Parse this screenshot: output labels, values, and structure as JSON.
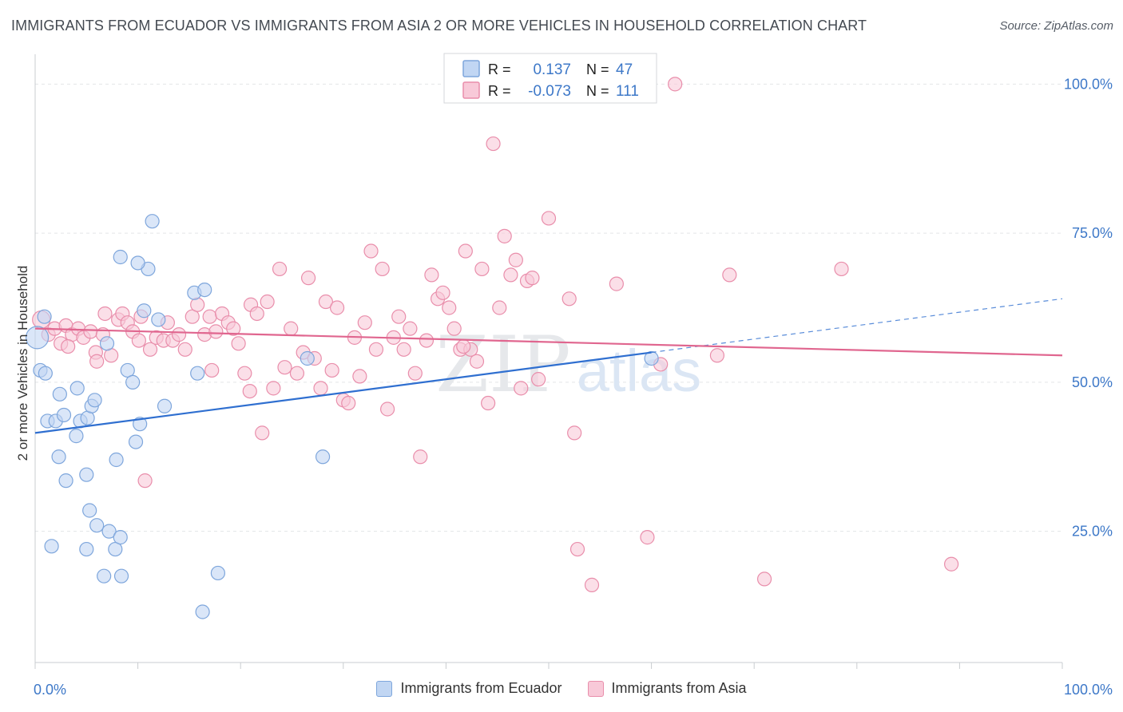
{
  "title": "IMMIGRANTS FROM ECUADOR VS IMMIGRANTS FROM ASIA 2 OR MORE VEHICLES IN HOUSEHOLD CORRELATION CHART",
  "source": "Source: ZipAtlas.com",
  "watermark": {
    "zip": "ZIP",
    "atlas": "atlas"
  },
  "colors": {
    "blue_fill": "#c1d6f3",
    "blue_stroke": "#7ea6dc",
    "blue_line": "#2f6fd0",
    "pink_fill": "#f8c9d8",
    "pink_stroke": "#e98eab",
    "pink_line": "#e0668f",
    "tick_label": "#3d78c8"
  },
  "legend_box": {
    "rows": [
      {
        "r_label": "R =",
        "r_value": "0.137",
        "n_label": "N =",
        "n_value": "47"
      },
      {
        "r_label": "R =",
        "r_value": "-0.073",
        "n_label": "N =",
        "n_value": "111"
      }
    ]
  },
  "chart_data": {
    "type": "scatter",
    "ylabel": "2 or more Vehicles in Household",
    "xlim": [
      0,
      100
    ],
    "ylim": [
      3,
      105
    ],
    "x_tick_labels": [
      {
        "x": 0,
        "label": "0.0%"
      },
      {
        "x": 100,
        "label": "100.0%"
      }
    ],
    "y_tick_labels": [
      {
        "y": 25,
        "label": "25.0%"
      },
      {
        "y": 50,
        "label": "50.0%"
      },
      {
        "y": 75,
        "label": "75.0%"
      },
      {
        "y": 100,
        "label": "100.0%"
      }
    ],
    "legend_position": "bottom-center",
    "grid": true,
    "series": [
      {
        "name": "Immigrants from Ecuador",
        "color": "#7ea6dc",
        "trend": {
          "x0": 0,
          "y0": 41.5,
          "x1": 60,
          "y1": 55,
          "dash_to_x": 100,
          "dash_to_y": 64
        },
        "points": [
          [
            0.2,
            57.5
          ],
          [
            0.5,
            52
          ],
          [
            1,
            51.5
          ],
          [
            1.2,
            43.5
          ],
          [
            2,
            43.5
          ],
          [
            2.3,
            37.5
          ],
          [
            2.4,
            48
          ],
          [
            2.8,
            44.5
          ],
          [
            3,
            33.5
          ],
          [
            4,
            41
          ],
          [
            4.4,
            43.5
          ],
          [
            4.1,
            49
          ],
          [
            5,
            22
          ],
          [
            5.1,
            44
          ],
          [
            5,
            34.5
          ],
          [
            5.3,
            28.5
          ],
          [
            5.5,
            46
          ],
          [
            5.8,
            47
          ],
          [
            6,
            26
          ],
          [
            6.7,
            17.5
          ],
          [
            7,
            56.5
          ],
          [
            7.2,
            25
          ],
          [
            7.8,
            22
          ],
          [
            7.9,
            37
          ],
          [
            8.3,
            24
          ],
          [
            8.4,
            17.5
          ],
          [
            9,
            52
          ],
          [
            9.5,
            50
          ],
          [
            9.8,
            40
          ],
          [
            10.2,
            43
          ],
          [
            11,
            69
          ],
          [
            11.4,
            77
          ],
          [
            10.6,
            62
          ],
          [
            12.6,
            46
          ],
          [
            10,
            70
          ],
          [
            12,
            60.5
          ],
          [
            15.5,
            65
          ],
          [
            15.8,
            51.5
          ],
          [
            16.3,
            11.5
          ],
          [
            16.5,
            65.5
          ],
          [
            17.8,
            18
          ],
          [
            8.3,
            71
          ],
          [
            1.6,
            22.5
          ],
          [
            26.5,
            54
          ],
          [
            28,
            37.5
          ],
          [
            60,
            54
          ],
          [
            0.9,
            61
          ]
        ]
      },
      {
        "name": "Immigrants from Asia",
        "color": "#e98eab",
        "trend": {
          "x0": 0,
          "y0": 59,
          "x1": 100,
          "y1": 54.5
        },
        "points": [
          [
            0.6,
            60.5
          ],
          [
            1.3,
            58
          ],
          [
            1.9,
            59
          ],
          [
            2.5,
            56.5
          ],
          [
            3,
            59.5
          ],
          [
            3.6,
            58
          ],
          [
            4.2,
            59
          ],
          [
            4.7,
            57.5
          ],
          [
            5.4,
            58.5
          ],
          [
            5.9,
            55
          ],
          [
            6,
            53.5
          ],
          [
            6.6,
            58
          ],
          [
            6.8,
            61.5
          ],
          [
            7.4,
            54.5
          ],
          [
            8.1,
            60.5
          ],
          [
            8.5,
            61.5
          ],
          [
            9,
            60
          ],
          [
            9.5,
            58.5
          ],
          [
            10.3,
            61
          ],
          [
            10.7,
            33.5
          ],
          [
            11.2,
            55.5
          ],
          [
            11.8,
            57.5
          ],
          [
            12.5,
            57
          ],
          [
            12.9,
            60
          ],
          [
            13.4,
            57
          ],
          [
            14,
            58
          ],
          [
            14.6,
            55.5
          ],
          [
            15.3,
            61
          ],
          [
            15.8,
            63
          ],
          [
            16.5,
            58
          ],
          [
            17,
            61
          ],
          [
            17.6,
            58.5
          ],
          [
            18.2,
            61.5
          ],
          [
            18.8,
            60
          ],
          [
            19.3,
            59
          ],
          [
            19.8,
            56.5
          ],
          [
            20.4,
            51.5
          ],
          [
            21,
            63
          ],
          [
            21.6,
            61.5
          ],
          [
            22.1,
            41.5
          ],
          [
            22.6,
            63.5
          ],
          [
            23.2,
            49
          ],
          [
            23.8,
            69
          ],
          [
            24.3,
            52.5
          ],
          [
            24.9,
            59
          ],
          [
            25.5,
            51.5
          ],
          [
            26.1,
            55
          ],
          [
            26.6,
            67.5
          ],
          [
            27.2,
            54
          ],
          [
            27.8,
            49
          ],
          [
            28.3,
            63.5
          ],
          [
            28.9,
            52
          ],
          [
            29.4,
            62.5
          ],
          [
            30,
            47
          ],
          [
            30.5,
            46.5
          ],
          [
            31.1,
            57.5
          ],
          [
            31.6,
            51
          ],
          [
            32.1,
            60
          ],
          [
            32.7,
            72
          ],
          [
            33.2,
            55.5
          ],
          [
            33.8,
            69
          ],
          [
            34.3,
            45.5
          ],
          [
            34.9,
            57.5
          ],
          [
            35.4,
            61
          ],
          [
            35.9,
            55.5
          ],
          [
            36.5,
            59
          ],
          [
            37,
            51.5
          ],
          [
            37.5,
            37.5
          ],
          [
            38.1,
            57
          ],
          [
            38.6,
            68
          ],
          [
            39.2,
            64
          ],
          [
            39.7,
            65
          ],
          [
            40.3,
            62.5
          ],
          [
            40.8,
            59
          ],
          [
            41.4,
            55.5
          ],
          [
            41.9,
            72
          ],
          [
            42.4,
            55.5
          ],
          [
            43,
            53.5
          ],
          [
            43.5,
            69
          ],
          [
            44.1,
            46.5
          ],
          [
            44.6,
            90
          ],
          [
            45.2,
            62.5
          ],
          [
            45.7,
            74.5
          ],
          [
            46.3,
            68
          ],
          [
            46.8,
            70.5
          ],
          [
            47.3,
            49
          ],
          [
            47.9,
            67
          ],
          [
            48.4,
            67.5
          ],
          [
            49,
            50.5
          ],
          [
            50,
            77.5
          ],
          [
            52,
            64
          ],
          [
            52.5,
            41.5
          ],
          [
            52.8,
            22
          ],
          [
            53.5,
            100
          ],
          [
            54.2,
            16
          ],
          [
            56.6,
            66.5
          ],
          [
            59.6,
            24
          ],
          [
            60.9,
            53
          ],
          [
            62.3,
            100
          ],
          [
            66.4,
            54.5
          ],
          [
            67.6,
            68
          ],
          [
            71,
            17
          ],
          [
            78.5,
            69
          ],
          [
            89.2,
            19.5
          ],
          [
            17.2,
            52
          ],
          [
            20.9,
            48.5
          ],
          [
            10.1,
            57
          ],
          [
            3.2,
            56
          ],
          [
            41.7,
            56
          ]
        ]
      }
    ]
  }
}
